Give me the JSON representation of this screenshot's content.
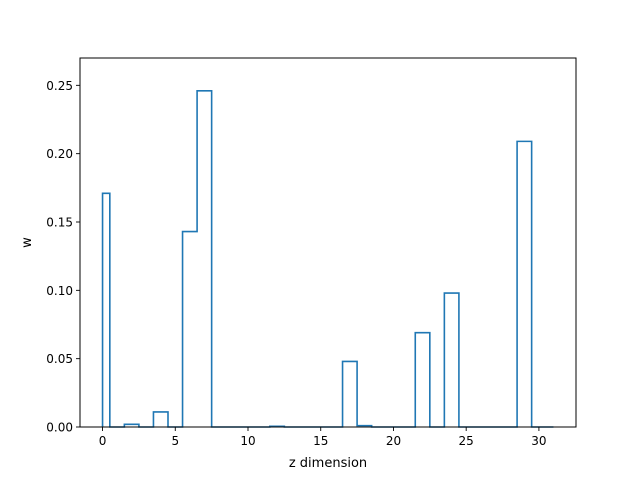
{
  "chart_data": {
    "type": "bar",
    "style": "step-histogram",
    "xlabel": "z dimension",
    "ylabel": "w",
    "xlim": [
      -1.55,
      32.55
    ],
    "ylim": [
      0,
      0.27
    ],
    "xticks": [
      {
        "value": 0,
        "label": "0"
      },
      {
        "value": 5,
        "label": "5"
      },
      {
        "value": 10,
        "label": "10"
      },
      {
        "value": 15,
        "label": "15"
      },
      {
        "value": 20,
        "label": "20"
      },
      {
        "value": 25,
        "label": "25"
      },
      {
        "value": 30,
        "label": "30"
      }
    ],
    "yticks": [
      {
        "value": 0.0,
        "label": "0.00"
      },
      {
        "value": 0.05,
        "label": "0.05"
      },
      {
        "value": 0.1,
        "label": "0.10"
      },
      {
        "value": 0.15,
        "label": "0.15"
      },
      {
        "value": 0.2,
        "label": "0.20"
      },
      {
        "value": 0.25,
        "label": "0.25"
      }
    ],
    "x": [
      0,
      1,
      2,
      3,
      4,
      5,
      6,
      7,
      8,
      9,
      10,
      11,
      12,
      13,
      14,
      15,
      16,
      17,
      18,
      19,
      20,
      21,
      22,
      23,
      24,
      25,
      26,
      27,
      28,
      29,
      30
    ],
    "values": [
      0.171,
      0.0,
      0.002,
      0.0,
      0.011,
      0.0,
      0.143,
      0.246,
      0.0,
      0.0,
      0.0,
      0.0,
      0.0005,
      0.0,
      0.0,
      0.0,
      0.0,
      0.048,
      0.001,
      0.0,
      0.0,
      0.0,
      0.069,
      0.0,
      0.098,
      0.0,
      0.0,
      0.0,
      0.0,
      0.209,
      0.0
    ],
    "x_end": 31,
    "grid": false,
    "legend": "none",
    "colors": {
      "line": "#1f77b4",
      "axes": "#000000",
      "background": "#ffffff"
    }
  }
}
